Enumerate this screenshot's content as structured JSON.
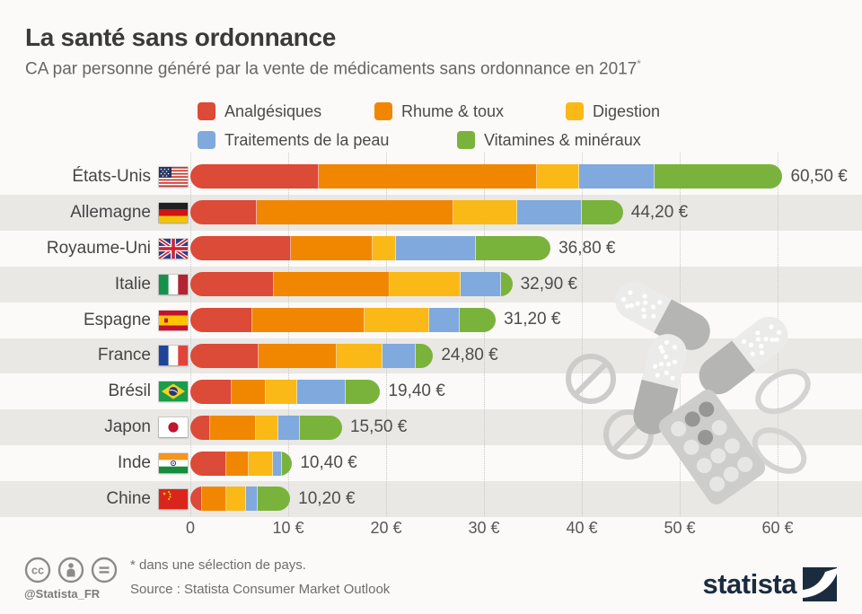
{
  "header": {
    "title": "La santé sans ordonnance",
    "subtitle": "CA par personne généré par la vente de médicaments sans ordonnance en 2017",
    "subtitle_asterisk": "*"
  },
  "chart_data": {
    "type": "bar",
    "orientation": "horizontal",
    "stacked": true,
    "unit": "€ par personne",
    "title": "La santé sans ordonnance",
    "xlabel": "",
    "ylabel": "",
    "x_axis": {
      "ticks": [
        "0",
        "10 €",
        "20 €",
        "30 €",
        "40 €",
        "50 €",
        "60 €"
      ],
      "min": 0,
      "max": 60,
      "gridlines": "dotted"
    },
    "categories": [
      "États-Unis",
      "Allemagne",
      "Royaume-Uni",
      "Italie",
      "Espagne",
      "France",
      "Brésil",
      "Japon",
      "Inde",
      "Chine"
    ],
    "flags": [
      "us",
      "de",
      "gb",
      "it",
      "es",
      "fr",
      "br",
      "jp",
      "in",
      "cn"
    ],
    "totals": [
      60.5,
      44.2,
      36.8,
      32.9,
      31.2,
      24.8,
      19.4,
      15.5,
      10.4,
      10.2
    ],
    "total_labels": [
      "60,50 €",
      "44,20 €",
      "36,80 €",
      "32,90 €",
      "31,20 €",
      "24,80 €",
      "19,40 €",
      "15,50 €",
      "10,40 €",
      "10,20 €"
    ],
    "series": [
      {
        "name": "Analgésiques",
        "color": "#dc4a38",
        "values": [
          13.1,
          6.8,
          10.3,
          8.5,
          6.3,
          7.0,
          4.2,
          2.0,
          3.7,
          1.2
        ]
      },
      {
        "name": "Rhume & toux",
        "color": "#f18700",
        "values": [
          22.3,
          20.1,
          8.3,
          11.9,
          11.5,
          8.0,
          3.5,
          4.7,
          2.3,
          2.5
        ]
      },
      {
        "name": "Digestion",
        "color": "#fbb917",
        "values": [
          4.3,
          6.5,
          2.4,
          7.2,
          6.6,
          4.6,
          3.2,
          2.3,
          2.4,
          2.0
        ]
      },
      {
        "name": "Traitements de la peau",
        "color": "#80a9dd",
        "values": [
          7.7,
          6.6,
          8.2,
          4.1,
          3.1,
          3.4,
          5.0,
          2.2,
          1.0,
          1.2
        ]
      },
      {
        "name": "Vitamines & minéraux",
        "color": "#7ab33c",
        "values": [
          13.1,
          4.2,
          7.6,
          1.2,
          3.7,
          1.8,
          3.5,
          4.3,
          1.0,
          3.3
        ]
      }
    ]
  },
  "footer": {
    "footnote": "* dans une sélection de pays.",
    "source": "Source : Statista Consumer Market Outlook",
    "handle": "@Statista_FR",
    "logo_text": "statista",
    "license_icons": [
      "cc",
      "attribution",
      "no-derivatives"
    ]
  },
  "colors": {
    "background": "#fbfaf8",
    "stripe": "#e9e8e5",
    "logo_navy": "#1b2c3e",
    "illustration_gray": "#c6c6c4"
  }
}
